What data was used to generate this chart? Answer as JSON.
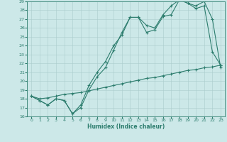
{
  "xlabel": "Humidex (Indice chaleur)",
  "background_color": "#cce8e8",
  "line_color": "#2d7d6e",
  "grid_color": "#aacccc",
  "xlim": [
    -0.5,
    23.5
  ],
  "ylim": [
    16,
    29
  ],
  "xticks": [
    0,
    1,
    2,
    3,
    4,
    5,
    6,
    7,
    8,
    9,
    10,
    11,
    12,
    13,
    14,
    15,
    16,
    17,
    18,
    19,
    20,
    21,
    22,
    23
  ],
  "yticks": [
    16,
    17,
    18,
    19,
    20,
    21,
    22,
    23,
    24,
    25,
    26,
    27,
    28,
    29
  ],
  "line1_x": [
    0,
    1,
    2,
    3,
    4,
    5,
    6,
    7,
    8,
    9,
    10,
    11,
    12,
    13,
    14,
    15,
    16,
    17,
    18,
    19,
    20,
    21,
    22,
    23
  ],
  "line1_y": [
    18.3,
    17.8,
    17.3,
    18.0,
    17.8,
    16.3,
    17.3,
    19.5,
    21.0,
    22.2,
    24.0,
    25.2,
    27.2,
    27.2,
    25.5,
    25.8,
    27.3,
    27.5,
    29.2,
    28.8,
    28.5,
    29.0,
    27.0,
    21.5
  ],
  "line2_x": [
    0,
    1,
    2,
    3,
    4,
    5,
    6,
    7,
    8,
    9,
    10,
    11,
    12,
    13,
    14,
    15,
    16,
    17,
    18,
    19,
    20,
    21,
    22,
    23
  ],
  "line2_y": [
    18.3,
    17.8,
    17.3,
    18.0,
    17.8,
    16.3,
    17.0,
    19.0,
    20.5,
    21.5,
    23.5,
    25.5,
    27.2,
    27.2,
    26.3,
    26.0,
    27.5,
    28.5,
    29.2,
    28.8,
    28.2,
    28.5,
    23.3,
    21.8
  ],
  "line3_x": [
    0,
    1,
    2,
    3,
    4,
    5,
    6,
    7,
    8,
    9,
    10,
    11,
    12,
    13,
    14,
    15,
    16,
    17,
    18,
    19,
    20,
    21,
    22,
    23
  ],
  "line3_y": [
    18.3,
    18.0,
    18.1,
    18.3,
    18.5,
    18.6,
    18.7,
    18.9,
    19.1,
    19.3,
    19.5,
    19.7,
    19.9,
    20.1,
    20.3,
    20.4,
    20.6,
    20.8,
    21.0,
    21.2,
    21.3,
    21.5,
    21.6,
    21.8
  ],
  "xlabel_fontsize": 5.5,
  "tick_fontsize": 4.5,
  "ylabel_fontsize": 5.5,
  "linewidth": 0.8,
  "markersize": 3
}
